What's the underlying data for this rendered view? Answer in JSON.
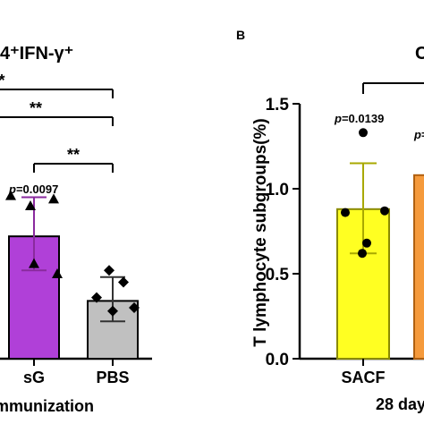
{
  "chart_data": [
    {
      "type": "bar",
      "panel": "",
      "title": "4⁺IFN-γ⁺",
      "xlabel": "mmunization",
      "ylabel": "",
      "categories": [
        "sG",
        "PBS"
      ],
      "values": [
        0.72,
        0.34
      ],
      "errors": [
        [
          0.52,
          0.95
        ],
        [
          0.22,
          0.48
        ]
      ],
      "points": [
        [
          0.96,
          0.9,
          0.94,
          0.56,
          0.5
        ],
        [
          0.52,
          0.45,
          0.36,
          0.3,
          0.28
        ]
      ],
      "colors": [
        "#b040d8",
        "#c0c0c0"
      ],
      "annotations": [
        {
          "text": "p=0.0097",
          "at": "sG"
        }
      ],
      "significance": [
        "*",
        "**",
        "**"
      ],
      "ylim": [
        0,
        1.5
      ]
    },
    {
      "type": "bar",
      "panel": "B",
      "title": "C",
      "xlabel": "28 day",
      "ylabel": "T lymphocyte subgroups(%)",
      "categories": [
        "SACF",
        ""
      ],
      "values": [
        0.88,
        1.08
      ],
      "errors": [
        [
          0.62,
          1.15
        ],
        null
      ],
      "points": [
        [
          1.33,
          0.87,
          0.86,
          0.68,
          0.62
        ],
        []
      ],
      "colors": [
        "#ffff22",
        "#f59a3c"
      ],
      "annotations": [
        {
          "text": "p=0.0139",
          "at": "SACF"
        },
        {
          "text": "p=",
          "at": ""
        }
      ],
      "yticks": [
        "0.0",
        "0.5",
        "1.0",
        "1.5"
      ],
      "ylim": [
        0,
        1.5
      ]
    }
  ]
}
